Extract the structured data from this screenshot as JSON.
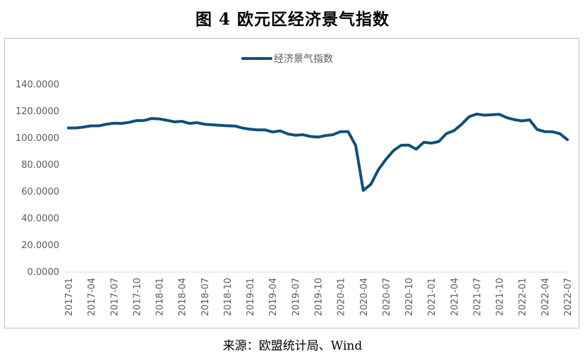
{
  "figure": {
    "title": "图 4 欧元区经济景气指数",
    "source": "来源：欧盟统计局、Wind"
  },
  "chart_data": {
    "type": "line",
    "title": "图 4 欧元区经济景气指数",
    "xlabel": "",
    "ylabel": "",
    "ylim": [
      0,
      140
    ],
    "y_ticks": [
      "0.0000",
      "20.0000",
      "40.0000",
      "60.0000",
      "80.0000",
      "100.0000",
      "120.0000",
      "140.0000"
    ],
    "x_tick_labels": [
      "2017-01",
      "2017-04",
      "2017-07",
      "2017-10",
      "2018-01",
      "2018-04",
      "2018-07",
      "2018-10",
      "2019-01",
      "2019-04",
      "2019-07",
      "2019-10",
      "2020-01",
      "2020-04",
      "2020-07",
      "2020-10",
      "2021-01",
      "2021-04",
      "2021-07",
      "2021-10",
      "2022-01",
      "2022-04",
      "2022-07"
    ],
    "x_start": "2017-01",
    "x_end": "2022-07",
    "grid": false,
    "legend_position": "top-center",
    "series": [
      {
        "name": "经济景气指数",
        "color": "#0f4f7a",
        "values": [
          107.6,
          107.6,
          108.3,
          109.2,
          109.2,
          110.4,
          111.2,
          111.0,
          111.8,
          113.1,
          113.2,
          114.7,
          114.4,
          113.4,
          112.2,
          112.6,
          111.0,
          111.6,
          110.4,
          110.0,
          109.6,
          109.3,
          109.1,
          107.6,
          106.7,
          106.2,
          106.2,
          104.6,
          105.5,
          103.2,
          102.2,
          102.6,
          101.3,
          100.8,
          101.9,
          102.6,
          104.9,
          104.9,
          94.5,
          61.0,
          65.5,
          76.5,
          84.2,
          90.7,
          94.7,
          94.9,
          91.8,
          96.9,
          96.3,
          97.5,
          103.4,
          105.6,
          110.3,
          116.0,
          118.0,
          117.2,
          117.5,
          117.8,
          115.3,
          113.8,
          112.9,
          113.7,
          106.5,
          104.9,
          104.8,
          103.4,
          98.9
        ]
      }
    ]
  }
}
